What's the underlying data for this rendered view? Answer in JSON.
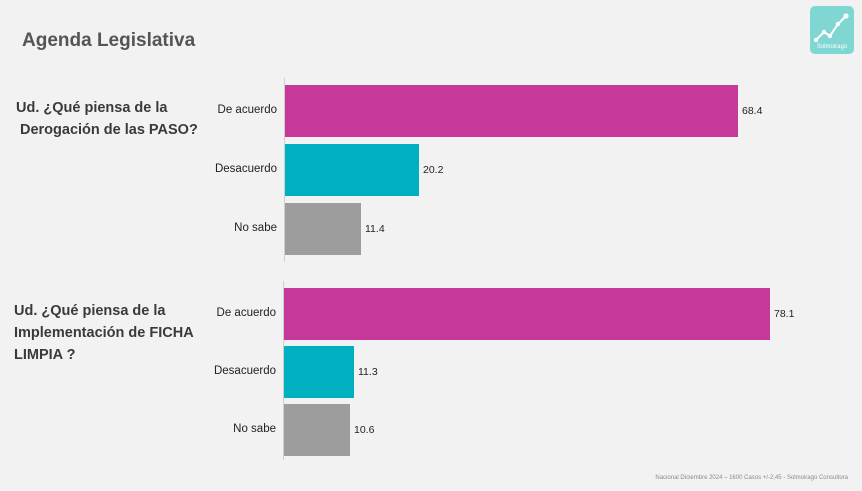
{
  "title": "Agenda Legislativa",
  "logo": {
    "text": "Solmoirago",
    "icon": "trend-chart-icon"
  },
  "questions": [
    {
      "lines": [
        "Ud. ¿Qué piensa de la",
        "Derogación de las PASO?"
      ]
    },
    {
      "lines": [
        "Ud.  ¿Qué piensa de la",
        "Implementación de FICHA",
        "LIMPIA ?"
      ]
    }
  ],
  "colors": {
    "de_acuerdo": "#c6399a",
    "desacuerdo": "#00b0c0",
    "no_sabe": "#9d9d9d"
  },
  "chart_data": [
    {
      "type": "bar",
      "orientation": "horizontal",
      "categories": [
        "De acuerdo",
        "Desacuerdo",
        "No sabe"
      ],
      "values": [
        68.4,
        20.2,
        11.4
      ],
      "xlim": [
        0,
        100
      ]
    },
    {
      "type": "bar",
      "orientation": "horizontal",
      "categories": [
        "De acuerdo",
        "Desacuerdo",
        "No sabe"
      ],
      "values": [
        78.1,
        11.3,
        10.6
      ],
      "xlim": [
        0,
        100
      ]
    }
  ],
  "footer": "Nacional Diciembre 2024 – 1600 Casos +/-2,45 - Solmoirago Consultora"
}
